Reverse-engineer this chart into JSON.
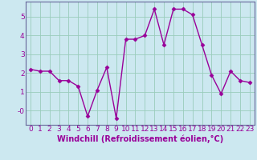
{
  "x": [
    0,
    1,
    2,
    3,
    4,
    5,
    6,
    7,
    8,
    9,
    10,
    11,
    12,
    13,
    14,
    15,
    16,
    17,
    18,
    19,
    20,
    21,
    22,
    23
  ],
  "y": [
    2.2,
    2.1,
    2.1,
    1.6,
    1.6,
    1.3,
    -0.3,
    1.1,
    2.3,
    -0.4,
    3.8,
    3.8,
    4.0,
    5.4,
    3.5,
    5.4,
    5.4,
    5.1,
    3.5,
    1.9,
    0.9,
    2.1,
    1.6,
    1.5
  ],
  "line_color": "#990099",
  "marker": "D",
  "marker_size": 2.5,
  "line_width": 1.0,
  "xlabel": "Windchill (Refroidissement éolien,°C)",
  "xlabel_fontsize": 7,
  "xtick_labels": [
    "0",
    "1",
    "2",
    "3",
    "4",
    "5",
    "6",
    "7",
    "8",
    "9",
    "10",
    "11",
    "12",
    "13",
    "14",
    "15",
    "16",
    "17",
    "18",
    "19",
    "20",
    "21",
    "22",
    "23"
  ],
  "ytick_values": [
    0,
    1,
    2,
    3,
    4,
    5
  ],
  "ytick_labels": [
    "-0",
    "1",
    "2",
    "3",
    "4",
    "5"
  ],
  "ylim": [
    -0.75,
    5.8
  ],
  "xlim": [
    -0.5,
    23.5
  ],
  "background_color": "#cce8f0",
  "grid_color": "#99ccbb",
  "tick_fontsize": 6.5,
  "spine_color": "#666699"
}
